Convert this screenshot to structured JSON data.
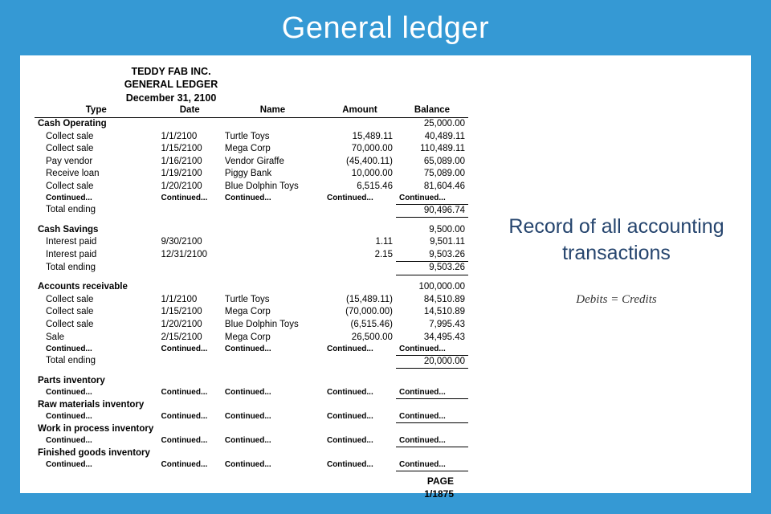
{
  "header": {
    "title": "General ledger"
  },
  "sidebar": {
    "description_l1": "Record of all accounting",
    "description_l2": "transactions",
    "formula": "Debits = Credits"
  },
  "ledger": {
    "company": "TEDDY FAB INC.",
    "report": "GENERAL LEDGER",
    "date": "December 31, 2100",
    "columns": {
      "type": "Type",
      "date": "Date",
      "name": "Name",
      "amount": "Amount",
      "balance": "Balance"
    },
    "continued": "Continued...",
    "total_ending": "Total ending",
    "page_label": "PAGE",
    "page_value": "1/1875",
    "sections": {
      "cash_op": {
        "title": "Cash Operating",
        "opening": "25,000.00",
        "rows": [
          {
            "type": "Collect sale",
            "date": "1/1/2100",
            "name": "Turtle Toys",
            "amount": "15,489.11",
            "balance": "40,489.11"
          },
          {
            "type": "Collect sale",
            "date": "1/15/2100",
            "name": "Mega Corp",
            "amount": "70,000.00",
            "balance": "110,489.11"
          },
          {
            "type": "Pay vendor",
            "date": "1/16/2100",
            "name": "Vendor Giraffe",
            "amount": "(45,400.11)",
            "balance": "65,089.00"
          },
          {
            "type": "Receive loan",
            "date": "1/19/2100",
            "name": "Piggy Bank",
            "amount": "10,000.00",
            "balance": "75,089.00"
          },
          {
            "type": "Collect sale",
            "date": "1/20/2100",
            "name": "Blue Dolphin Toys",
            "amount": "6,515.46",
            "balance": "81,604.46"
          }
        ],
        "ending": "90,496.74"
      },
      "cash_sav": {
        "title": "Cash Savings",
        "opening": "9,500.00",
        "rows": [
          {
            "type": "Interest paid",
            "date": "9/30/2100",
            "name": "",
            "amount": "1.11",
            "balance": "9,501.11"
          },
          {
            "type": "Interest paid",
            "date": "12/31/2100",
            "name": "",
            "amount": "2.15",
            "balance": "9,503.26"
          }
        ],
        "ending": "9,503.26"
      },
      "ar": {
        "title": "Accounts receivable",
        "opening": "100,000.00",
        "rows": [
          {
            "type": "Collect sale",
            "date": "1/1/2100",
            "name": "Turtle Toys",
            "amount": "(15,489.11)",
            "balance": "84,510.89"
          },
          {
            "type": "Collect sale",
            "date": "1/15/2100",
            "name": "Mega Corp",
            "amount": "(70,000.00)",
            "balance": "14,510.89"
          },
          {
            "type": "Collect sale",
            "date": "1/20/2100",
            "name": "Blue Dolphin Toys",
            "amount": "(6,515.46)",
            "balance": "7,995.43"
          },
          {
            "type": "Sale",
            "date": "2/15/2100",
            "name": "Mega Corp",
            "amount": "26,500.00",
            "balance": "34,495.43"
          }
        ],
        "ending": "20,000.00"
      },
      "parts": {
        "title": "Parts inventory"
      },
      "raw": {
        "title": "Raw materials inventory"
      },
      "wip": {
        "title": "Work in process inventory"
      },
      "fg": {
        "title": "Finished goods inventory"
      }
    }
  },
  "style": {
    "bg_color": "#3599d4",
    "doc_bg": "#ffffff",
    "title_color": "#ffffff",
    "desc_color": "#26456e",
    "text_color": "#000000",
    "title_fontsize": 38,
    "desc_fontsize": 25,
    "body_fontsize": 11.5
  }
}
